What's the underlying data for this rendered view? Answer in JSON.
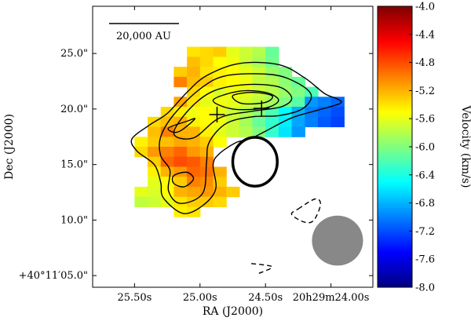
{
  "chart_data": {
    "type": "heatmap",
    "xlabel": "RA (J2000)",
    "ylabel": "Dec (J2000)",
    "x_ticks": [
      {
        "value": 25.5,
        "label": "25.50s"
      },
      {
        "value": 25.0,
        "label": "25.00s"
      },
      {
        "value": 24.5,
        "label": "24.50s"
      },
      {
        "value": 24.0,
        "label": "20h29m24.00s"
      }
    ],
    "y_ticks": [
      {
        "value": 25.0,
        "label": "25.0\""
      },
      {
        "value": 20.0,
        "label": "20.0\""
      },
      {
        "value": 15.0,
        "label": "15.0\""
      },
      {
        "value": 10.0,
        "label": "10.0\""
      },
      {
        "value": 5.0,
        "label": "+40°11′05.0\""
      }
    ],
    "xlim": [
      25.82,
      23.68
    ],
    "ylim": [
      3.95,
      29.25
    ],
    "scale_bar": {
      "label": "20,000 AU"
    },
    "colorbar": {
      "label": "Velocity (km/s)",
      "min": -8.0,
      "max": -4.0,
      "ticks": [
        {
          "value": -4.0,
          "label": "-4.0"
        },
        {
          "value": -4.4,
          "label": "-4.4"
        },
        {
          "value": -4.8,
          "label": "-4.8"
        },
        {
          "value": -5.2,
          "label": "-5.2"
        },
        {
          "value": -5.6,
          "label": "-5.6"
        },
        {
          "value": -6.0,
          "label": "-6.0"
        },
        {
          "value": -6.4,
          "label": "-6.4"
        },
        {
          "value": -6.8,
          "label": "-6.8"
        },
        {
          "value": -7.2,
          "label": "-7.2"
        },
        {
          "value": -7.6,
          "label": "-7.6"
        },
        {
          "value": -8.0,
          "label": "-8.0"
        }
      ],
      "colormap": "jet"
    },
    "velocity_pixels": {
      "cell_ra": 0.1,
      "cell_dec": 0.9,
      "rows": [
        {
          "dec": 25.15,
          "ra": [
            25.05,
            24.95,
            24.85,
            24.75,
            24.65,
            24.55,
            24.45
          ],
          "v": [
            -5.4,
            -5.35,
            -5.3,
            -5.6,
            -5.7,
            -5.8,
            -6.1
          ]
        },
        {
          "dec": 24.25,
          "ra": [
            25.05,
            24.95,
            24.85,
            24.75,
            24.65,
            24.55,
            24.45
          ],
          "v": [
            -5.25,
            -5.35,
            -5.5,
            -5.55,
            -5.7,
            -5.85,
            -6.05
          ]
        },
        {
          "dec": 23.35,
          "ra": [
            25.15,
            25.05,
            24.95,
            24.85,
            24.75,
            24.65,
            24.55,
            24.45,
            24.35
          ],
          "v": [
            -5.3,
            -5.2,
            -5.4,
            -5.45,
            -5.5,
            -5.6,
            -5.7,
            -5.9,
            -6.0
          ]
        },
        {
          "dec": 22.45,
          "ra": [
            25.15,
            25.05,
            24.95,
            24.85,
            24.75,
            24.65,
            24.55,
            24.45,
            24.35,
            24.25
          ],
          "v": [
            -5.0,
            -5.25,
            -5.3,
            -5.45,
            -5.5,
            -5.55,
            -5.75,
            -5.8,
            -5.95,
            -6.1
          ]
        },
        {
          "dec": 21.55,
          "ra": [
            25.05,
            24.95,
            24.85,
            24.75,
            24.65,
            24.55,
            24.45,
            24.35,
            24.25,
            24.15
          ],
          "v": [
            -5.35,
            -5.5,
            -5.65,
            -5.55,
            -5.6,
            -5.7,
            -5.8,
            -5.9,
            -6.0,
            -6.2
          ]
        },
        {
          "dec": 20.65,
          "ra": [
            25.15,
            25.05,
            24.95,
            24.85,
            24.75,
            24.65,
            24.55,
            24.45,
            24.35,
            24.25,
            24.15,
            24.05,
            23.95
          ],
          "v": [
            -5.15,
            -5.4,
            -5.6,
            -5.55,
            -5.6,
            -5.65,
            -5.75,
            -5.85,
            -6.0,
            -6.15,
            -6.9,
            -7.0,
            -7.1
          ]
        },
        {
          "dec": 19.75,
          "ra": [
            25.25,
            25.15,
            25.05,
            24.95,
            24.85,
            24.75,
            24.65,
            24.55,
            24.45,
            24.35,
            24.25,
            24.15,
            24.05,
            23.95
          ],
          "v": [
            -5.35,
            -5.45,
            -5.55,
            -5.5,
            -5.6,
            -5.7,
            -5.8,
            -5.95,
            -6.2,
            -6.5,
            -6.8,
            -7.0,
            -7.1,
            -7.2
          ]
        },
        {
          "dec": 18.85,
          "ra": [
            25.35,
            25.25,
            25.15,
            25.05,
            24.95,
            24.85,
            24.75,
            24.65,
            24.55,
            24.45,
            24.35,
            24.25,
            24.15,
            24.05,
            23.95
          ],
          "v": [
            -5.35,
            -5.25,
            -5.2,
            -5.45,
            -5.5,
            -5.55,
            -5.7,
            -5.85,
            -6.1,
            -6.3,
            -6.55,
            -6.85,
            -7.0,
            -7.15,
            -7.25
          ]
        },
        {
          "dec": 17.95,
          "ra": [
            25.35,
            25.25,
            25.15,
            25.05,
            24.95,
            24.85,
            24.75,
            24.65,
            24.55,
            24.45,
            24.35,
            24.25
          ],
          "v": [
            -5.25,
            -5.0,
            -5.2,
            -5.2,
            -5.45,
            -5.6,
            -5.7,
            -5.8,
            -6.0,
            -6.3,
            -6.6,
            -6.9
          ]
        },
        {
          "dec": 17.05,
          "ra": [
            25.45,
            25.35,
            25.25,
            25.15,
            25.05,
            24.95,
            24.85
          ],
          "v": [
            -5.45,
            -5.3,
            -5.25,
            -5.15,
            -5.2,
            -5.3,
            -5.5
          ]
        },
        {
          "dec": 16.15,
          "ra": [
            25.45,
            25.35,
            25.25,
            25.15,
            25.05,
            24.95
          ],
          "v": [
            -5.35,
            -5.1,
            -5.0,
            -4.9,
            -5.1,
            -5.2
          ]
        },
        {
          "dec": 15.25,
          "ra": [
            25.35,
            25.25,
            25.15,
            25.05,
            24.95
          ],
          "v": [
            -5.3,
            -4.9,
            -4.8,
            -4.85,
            -5.0
          ]
        },
        {
          "dec": 14.35,
          "ra": [
            25.35,
            25.25,
            25.15,
            25.05,
            24.95,
            24.85
          ],
          "v": [
            -5.45,
            -5.2,
            -5.1,
            -4.9,
            -4.95,
            -5.2
          ]
        },
        {
          "dec": 13.45,
          "ra": [
            25.35,
            25.25,
            25.15,
            25.05,
            24.95,
            24.85
          ],
          "v": [
            -5.6,
            -5.5,
            -5.3,
            -5.0,
            -5.05,
            -5.3
          ]
        },
        {
          "dec": 12.55,
          "ra": [
            25.45,
            25.35,
            25.25,
            25.15,
            25.05,
            24.95,
            24.85,
            24.75
          ],
          "v": [
            -5.6,
            -5.65,
            -5.5,
            -5.2,
            -5.15,
            -5.1,
            -5.2,
            -5.3
          ]
        },
        {
          "dec": 11.65,
          "ra": [
            25.45,
            25.35,
            25.25,
            25.15,
            25.05,
            24.95,
            24.85
          ],
          "v": [
            -5.75,
            -5.7,
            -5.6,
            -5.4,
            -5.3,
            -5.3,
            -5.35
          ]
        },
        {
          "dec": 10.75,
          "ra": [
            25.15,
            25.05
          ],
          "v": [
            -5.45,
            -5.4
          ]
        }
      ]
    },
    "contours": [
      {
        "style": "solid",
        "points": [
          [
            25.38,
            18.6
          ],
          [
            25.25,
            19.6
          ],
          [
            25.1,
            21.5
          ],
          [
            24.95,
            23.0
          ],
          [
            24.7,
            24.1
          ],
          [
            24.4,
            24.0
          ],
          [
            24.2,
            22.8
          ],
          [
            24.05,
            21.4
          ],
          [
            23.95,
            20.9
          ],
          [
            23.93,
            20.5
          ],
          [
            24.1,
            19.9
          ],
          [
            24.3,
            19.2
          ],
          [
            24.5,
            18.0
          ],
          [
            24.62,
            17.3
          ],
          [
            24.72,
            17.0
          ],
          [
            24.85,
            16.0
          ],
          [
            24.9,
            15.0
          ],
          [
            24.88,
            12.8
          ],
          [
            24.98,
            11.3
          ],
          [
            25.13,
            10.6
          ],
          [
            25.28,
            12.0
          ],
          [
            25.3,
            13.4
          ],
          [
            25.35,
            15.0
          ],
          [
            25.48,
            16.2
          ],
          [
            25.52,
            17.3
          ]
        ]
      },
      {
        "style": "solid",
        "points": [
          [
            25.3,
            17.5
          ],
          [
            25.2,
            19.5
          ],
          [
            25.0,
            21.8
          ],
          [
            24.8,
            23.0
          ],
          [
            24.45,
            23.1
          ],
          [
            24.25,
            22.3
          ],
          [
            24.15,
            21.2
          ],
          [
            24.22,
            20.0
          ],
          [
            24.4,
            19.4
          ],
          [
            24.6,
            19.3
          ],
          [
            24.8,
            18.7
          ],
          [
            24.93,
            17.0
          ],
          [
            24.95,
            15.2
          ],
          [
            24.98,
            12.4
          ],
          [
            25.15,
            11.5
          ],
          [
            25.24,
            12.6
          ],
          [
            25.23,
            14.5
          ],
          [
            25.3,
            15.8
          ]
        ]
      },
      {
        "style": "solid",
        "points": [
          [
            25.2,
            17.8
          ],
          [
            25.08,
            20.0
          ],
          [
            24.9,
            21.6
          ],
          [
            24.65,
            22.2
          ],
          [
            24.4,
            22.0
          ],
          [
            24.3,
            21.0
          ],
          [
            24.38,
            20.2
          ],
          [
            24.6,
            19.8
          ],
          [
            24.85,
            19.2
          ],
          [
            25.05,
            17.4
          ]
        ]
      },
      {
        "style": "solid",
        "points": [
          [
            24.9,
            20.8
          ],
          [
            24.7,
            21.6
          ],
          [
            24.5,
            21.5
          ],
          [
            24.4,
            20.8
          ],
          [
            24.5,
            20.1
          ],
          [
            24.75,
            20.0
          ]
        ]
      },
      {
        "style": "solid",
        "points": [
          [
            24.75,
            21.2
          ],
          [
            24.6,
            21.5
          ],
          [
            24.45,
            21.2
          ],
          [
            24.5,
            20.6
          ],
          [
            24.68,
            20.5
          ]
        ]
      },
      {
        "style": "solid",
        "points": [
          [
            25.14,
            18.1
          ],
          [
            25.04,
            19.1
          ],
          [
            25.1,
            18.9
          ],
          [
            25.24,
            18.3
          ],
          [
            25.2,
            17.9
          ]
        ]
      },
      {
        "style": "solid",
        "points": [
          [
            25.12,
            13.0
          ],
          [
            25.05,
            13.7
          ],
          [
            25.1,
            14.3
          ],
          [
            25.2,
            14.0
          ],
          [
            25.2,
            13.3
          ]
        ]
      },
      {
        "style": "dashed",
        "points": [
          [
            24.25,
            11.0
          ],
          [
            24.12,
            11.9
          ],
          [
            24.08,
            11.4
          ],
          [
            24.13,
            10.0
          ],
          [
            24.2,
            9.8
          ],
          [
            24.3,
            10.5
          ]
        ]
      },
      {
        "style": "dashed",
        "points": [
          [
            24.55,
            5.2
          ],
          [
            24.45,
            5.8
          ],
          [
            24.62,
            6.1
          ]
        ]
      }
    ],
    "markers": [
      {
        "type": "cross",
        "ra": 24.87,
        "dec": 19.5
      },
      {
        "type": "cross",
        "ra": 24.53,
        "dec": 20.05
      },
      {
        "type": "circle",
        "ra": 24.58,
        "dec": 15.25,
        "radius_ra": 0.17,
        "radius_dec": 2.2,
        "fill": "none"
      },
      {
        "type": "ellipse",
        "ra": 23.95,
        "dec": 8.15,
        "radius_ra": 0.195,
        "radius_dec": 2.25,
        "fill": "#888888"
      }
    ]
  }
}
